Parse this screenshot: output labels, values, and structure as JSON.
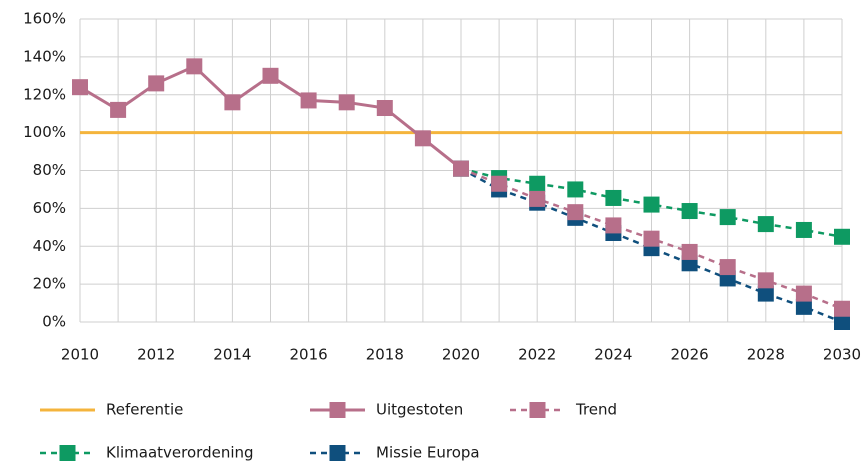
{
  "chart_data": {
    "type": "line",
    "x": [
      2010,
      2011,
      2012,
      2013,
      2014,
      2015,
      2016,
      2017,
      2018,
      2019,
      2020,
      2021,
      2022,
      2023,
      2024,
      2025,
      2026,
      2027,
      2028,
      2029,
      2030
    ],
    "xlim": [
      2010,
      2030
    ],
    "xticks": [
      2010,
      2012,
      2014,
      2016,
      2018,
      2020,
      2022,
      2024,
      2026,
      2028,
      2030
    ],
    "ylim": [
      0,
      160
    ],
    "yticks": [
      {
        "value": 0,
        "label": "0%"
      },
      {
        "value": 20,
        "label": "20%"
      },
      {
        "value": 40,
        "label": "40%"
      },
      {
        "value": 60,
        "label": "60%"
      },
      {
        "value": 80,
        "label": "80%"
      },
      {
        "value": 100,
        "label": "100%"
      },
      {
        "value": 120,
        "label": "120%"
      },
      {
        "value": 140,
        "label": "140%"
      },
      {
        "value": 160,
        "label": "160%"
      }
    ],
    "grid": true,
    "series": [
      {
        "name": "Referentie",
        "color": "#f4b43c",
        "dashed": false,
        "marker": "none",
        "values": [
          100,
          100,
          100,
          100,
          100,
          100,
          100,
          100,
          100,
          100,
          100,
          100,
          100,
          100,
          100,
          100,
          100,
          100,
          100,
          100,
          100
        ]
      },
      {
        "name": "Uitgestoten",
        "color": "#b76f8a",
        "dashed": false,
        "marker": "square",
        "values": [
          124,
          112,
          126,
          135,
          116,
          130,
          117,
          116,
          113,
          97,
          81,
          null,
          null,
          null,
          null,
          null,
          null,
          null,
          null,
          null,
          null
        ]
      },
      {
        "name": "Klimaatverordening",
        "color": "#0e9a62",
        "dashed": true,
        "marker": "square",
        "values": [
          null,
          null,
          null,
          null,
          null,
          null,
          null,
          null,
          null,
          null,
          81,
          76,
          73,
          70,
          65.5,
          62,
          58.6,
          55.4,
          51.7,
          48.6,
          45
        ]
      },
      {
        "name": "Missie Europa",
        "color": "#0f4f7d",
        "dashed": true,
        "marker": "square",
        "values": [
          null,
          null,
          null,
          null,
          null,
          null,
          null,
          null,
          null,
          null,
          81,
          70,
          63,
          55,
          47,
          39,
          31,
          23,
          15,
          8,
          0
        ]
      },
      {
        "name": "Trend",
        "color": "#b76f8a",
        "dashed": true,
        "marker": "square",
        "values": [
          null,
          null,
          null,
          null,
          null,
          null,
          null,
          null,
          null,
          null,
          81,
          73,
          65,
          58,
          51,
          44,
          37,
          29,
          22,
          15,
          7
        ]
      }
    ]
  }
}
